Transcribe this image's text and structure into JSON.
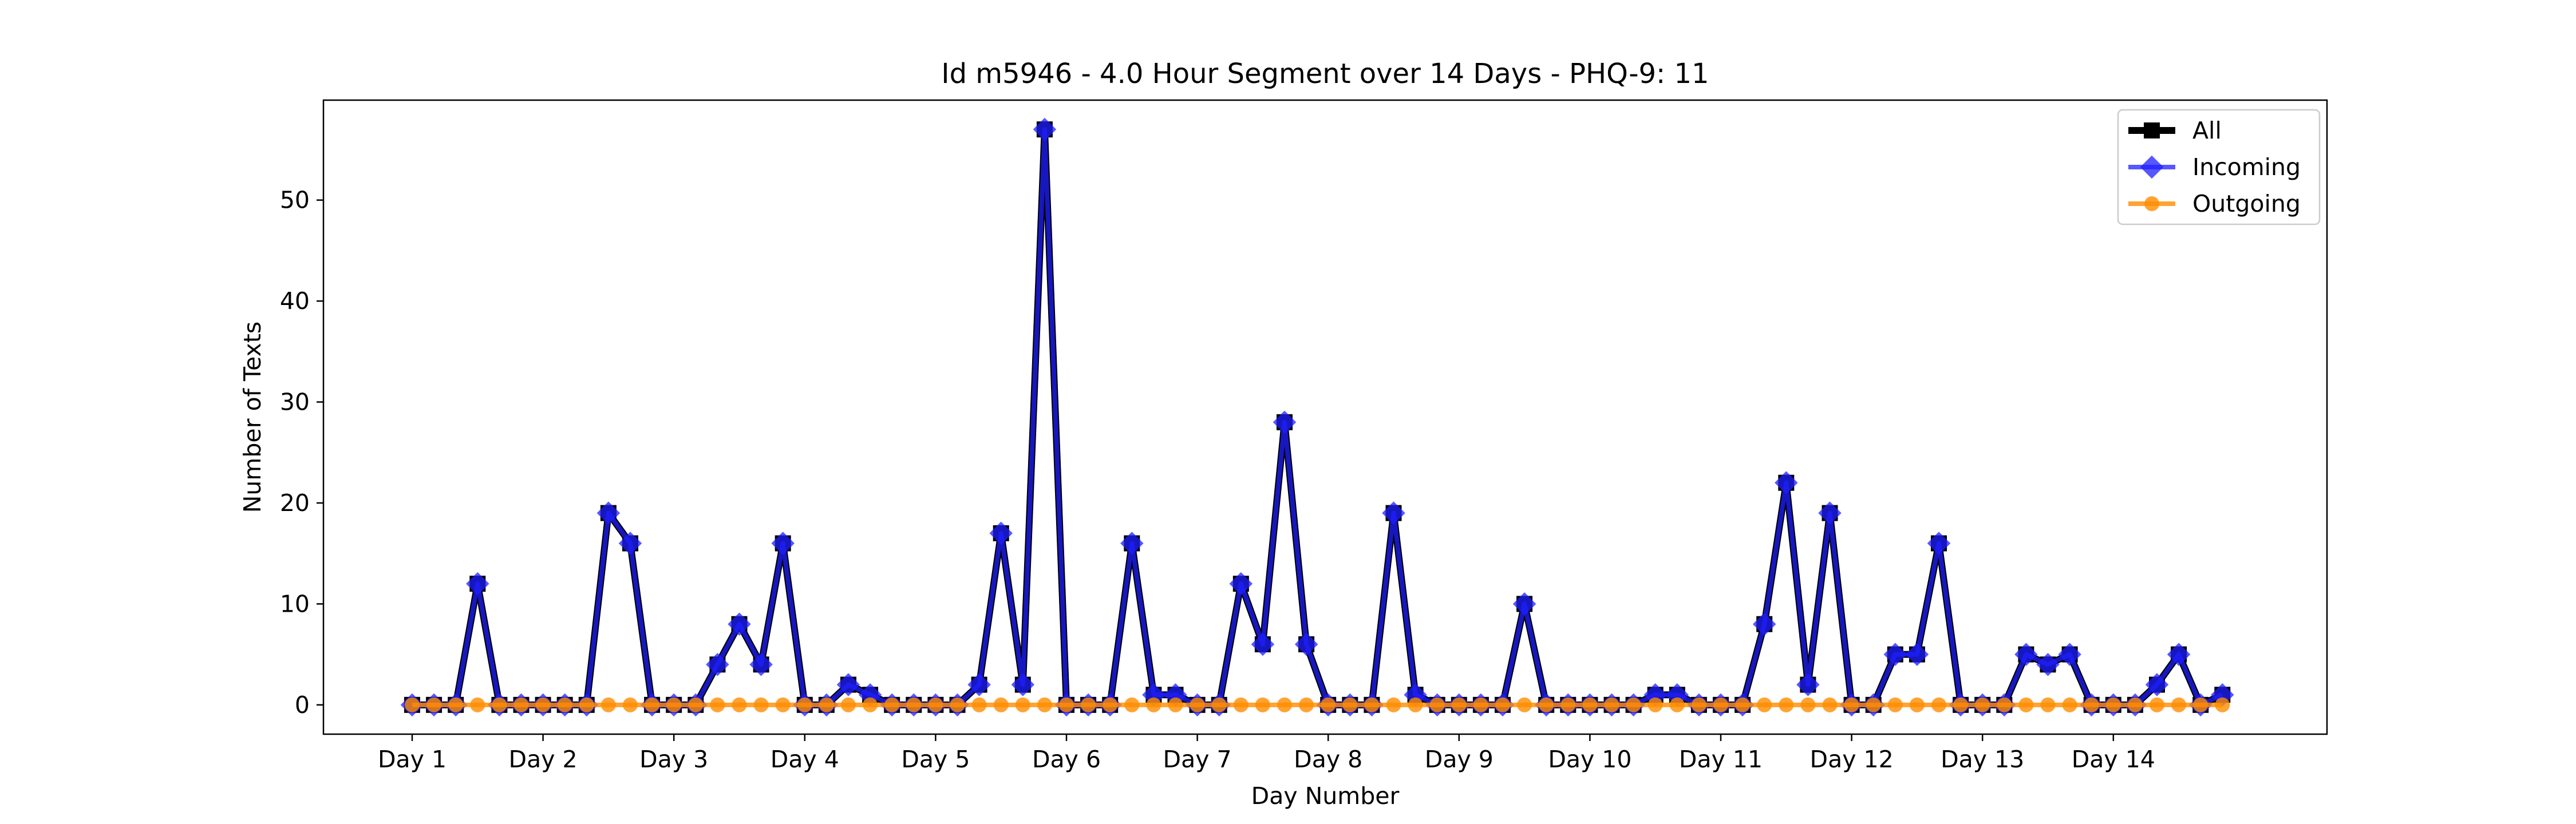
{
  "chart_data": {
    "type": "line",
    "title": "Id m5946 - 4.0 Hour Segment over 14 Days - PHQ-9: 11",
    "xlabel": "Day Number",
    "ylabel": "Number of Texts",
    "x_tick_labels": [
      "Day 1",
      "Day 2",
      "Day 3",
      "Day 4",
      "Day 5",
      "Day 6",
      "Day 7",
      "Day 8",
      "Day 9",
      "Day 10",
      "Day 11",
      "Day 12",
      "Day 13",
      "Day 14"
    ],
    "segments_per_day": 6,
    "ylim": [
      -2.9,
      59.9
    ],
    "yticks": [
      0,
      10,
      20,
      30,
      40,
      50
    ],
    "grid": false,
    "legend_position": "upper right",
    "series": [
      {
        "name": "All",
        "color": "#000000",
        "marker": "square",
        "values": [
          0,
          0,
          0,
          12,
          0,
          0,
          0,
          0,
          0,
          19,
          16,
          0,
          0,
          0,
          4,
          8,
          4,
          16,
          0,
          0,
          2,
          1,
          0,
          0,
          0,
          0,
          2,
          17,
          2,
          57,
          0,
          0,
          0,
          16,
          1,
          1,
          0,
          0,
          12,
          6,
          28,
          6,
          0,
          0,
          0,
          19,
          1,
          0,
          0,
          0,
          0,
          10,
          0,
          0,
          0,
          0,
          0,
          1,
          1,
          0,
          0,
          0,
          8,
          22,
          2,
          19,
          0,
          0,
          5,
          5,
          16,
          0,
          0,
          0,
          5,
          4,
          5,
          0,
          0,
          0,
          2,
          5,
          0,
          1
        ]
      },
      {
        "name": "Incoming",
        "color": "#1f1fff",
        "marker": "diamond",
        "values": [
          0,
          0,
          0,
          12,
          0,
          0,
          0,
          0,
          0,
          19,
          16,
          0,
          0,
          0,
          4,
          8,
          4,
          16,
          0,
          0,
          2,
          1,
          0,
          0,
          0,
          0,
          2,
          17,
          2,
          57,
          0,
          0,
          0,
          16,
          1,
          1,
          0,
          0,
          12,
          6,
          28,
          6,
          0,
          0,
          0,
          19,
          1,
          0,
          0,
          0,
          0,
          10,
          0,
          0,
          0,
          0,
          0,
          1,
          1,
          0,
          0,
          0,
          8,
          22,
          2,
          19,
          0,
          0,
          5,
          5,
          16,
          0,
          0,
          0,
          5,
          4,
          5,
          0,
          0,
          0,
          2,
          5,
          0,
          1
        ]
      },
      {
        "name": "Outgoing",
        "color": "#ff8c00",
        "marker": "circle",
        "values": [
          0,
          0,
          0,
          0,
          0,
          0,
          0,
          0,
          0,
          0,
          0,
          0,
          0,
          0,
          0,
          0,
          0,
          0,
          0,
          0,
          0,
          0,
          0,
          0,
          0,
          0,
          0,
          0,
          0,
          0,
          0,
          0,
          0,
          0,
          0,
          0,
          0,
          0,
          0,
          0,
          0,
          0,
          0,
          0,
          0,
          0,
          0,
          0,
          0,
          0,
          0,
          0,
          0,
          0,
          0,
          0,
          0,
          0,
          0,
          0,
          0,
          0,
          0,
          0,
          0,
          0,
          0,
          0,
          0,
          0,
          0,
          0,
          0,
          0,
          0,
          0,
          0,
          0,
          0,
          0,
          0,
          0,
          0,
          0
        ]
      }
    ]
  }
}
